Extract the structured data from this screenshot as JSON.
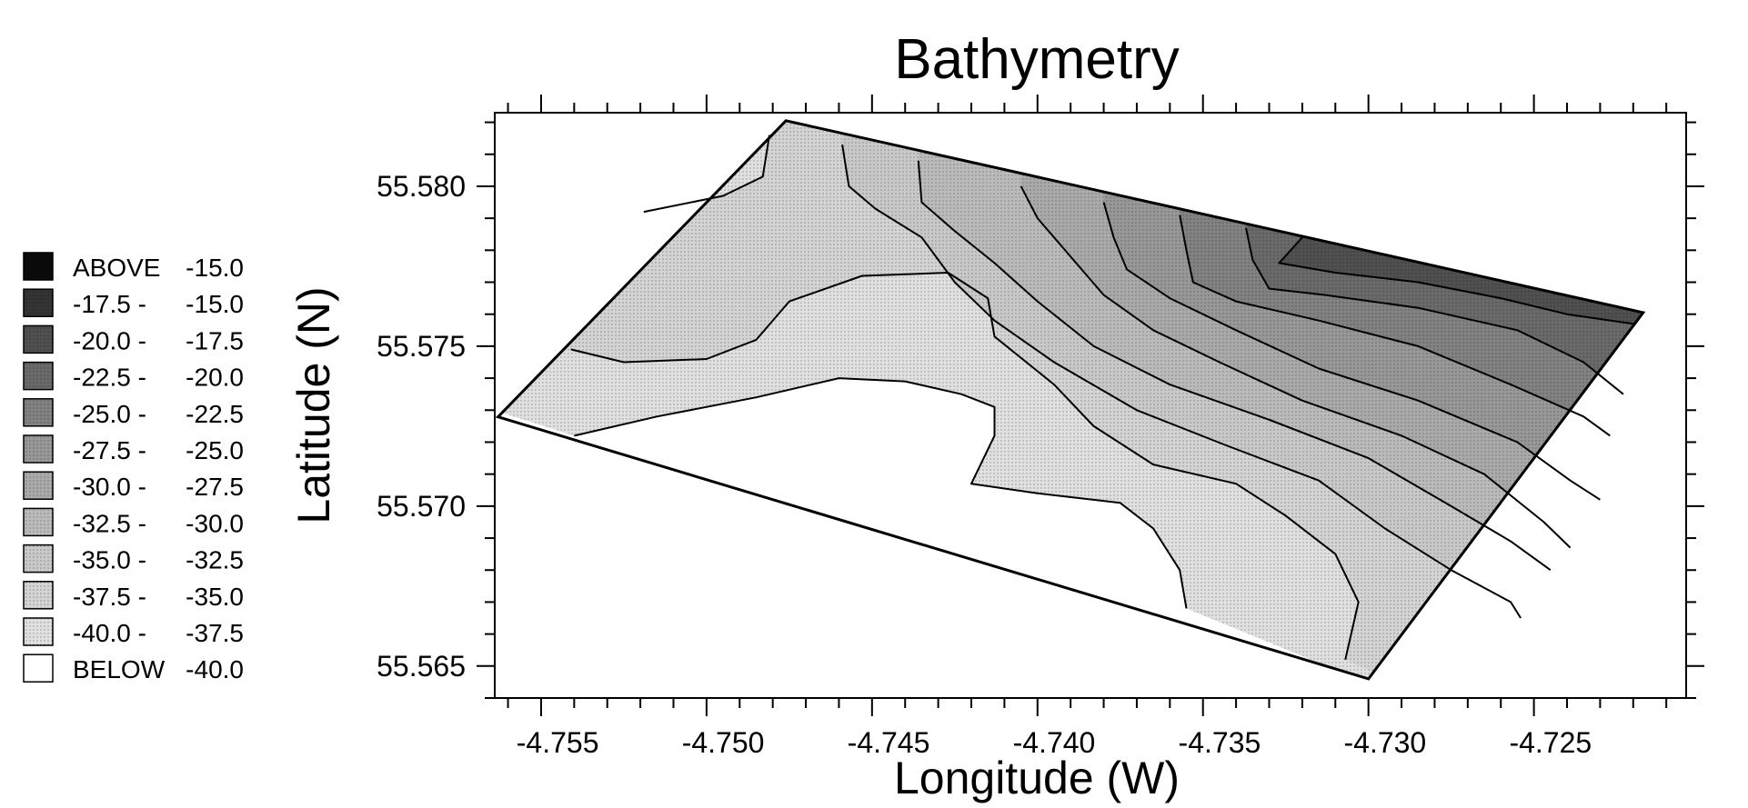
{
  "chart_data": {
    "type": "contour",
    "title": "Bathymetry",
    "xlabel": "Longitude (W)",
    "ylabel": "Latitude (N)",
    "xlim": [
      -4.7569,
      -4.7209
    ],
    "ylim": [
      55.564,
      55.5823
    ],
    "xticks": [
      -4.755,
      -4.75,
      -4.745,
      -4.74,
      -4.735,
      -4.73,
      -4.725
    ],
    "xtick_labels": [
      "-4.755",
      "-4.750",
      "-4.745",
      "-4.740",
      "-4.735",
      "-4.730",
      "-4.725"
    ],
    "yticks": [
      55.565,
      55.57,
      55.575,
      55.58
    ],
    "ytick_labels": [
      "55.565",
      "55.570",
      "55.575",
      "55.580"
    ],
    "grid": false,
    "legend_position": "left",
    "legend": [
      {
        "low": "ABOVE",
        "high": "-15.0",
        "color": "#0a0a0a"
      },
      {
        "low": "-17.5 -",
        "high": "-15.0",
        "color": "#343434"
      },
      {
        "low": "-20.0 -",
        "high": "-17.5",
        "color": "#505050"
      },
      {
        "low": "-22.5 -",
        "high": "-20.0",
        "color": "#6a6a6a"
      },
      {
        "low": "-25.0 -",
        "high": "-22.5",
        "color": "#828282"
      },
      {
        "low": "-27.5 -",
        "high": "-25.0",
        "color": "#989898"
      },
      {
        "low": "-30.0 -",
        "high": "-27.5",
        "color": "#aaaaaa"
      },
      {
        "low": "-32.5 -",
        "high": "-30.0",
        "color": "#bbbbbb"
      },
      {
        "low": "-35.0 -",
        "high": "-32.5",
        "color": "#c9c9c9"
      },
      {
        "low": "-37.5 -",
        "high": "-35.0",
        "color": "#d4d4d4"
      },
      {
        "low": "-40.0 -",
        "high": "-37.5",
        "color": "#e0e0e0"
      },
      {
        "low": "BELOW",
        "high": "-40.0",
        "color": "#ffffff"
      }
    ],
    "survey_area": [
      [
        -4.7481,
        55.58205
      ],
      [
        -4.7222,
        55.57605
      ],
      [
        -4.7305,
        55.5646
      ],
      [
        -4.7568,
        55.57279
      ]
    ],
    "contours": [
      {
        "level": -40.0,
        "points": [
          [
            -4.7545,
            55.5722
          ],
          [
            -4.752,
            55.5728
          ],
          [
            -4.749,
            55.5734
          ],
          [
            -4.7465,
            55.574
          ],
          [
            -4.7445,
            55.5739
          ],
          [
            -4.7428,
            55.5735
          ],
          [
            -4.7418,
            55.5731
          ],
          [
            -4.7418,
            55.5722
          ],
          [
            -4.7425,
            55.5707
          ],
          [
            -4.7405,
            55.5704
          ],
          [
            -4.738,
            55.5701
          ],
          [
            -4.737,
            55.5693
          ],
          [
            -4.7362,
            55.568
          ],
          [
            -4.736,
            55.5668
          ]
        ]
      },
      {
        "level": -37.5,
        "points": [
          [
            -4.7546,
            55.5749
          ],
          [
            -4.753,
            55.5745
          ],
          [
            -4.7505,
            55.5746
          ],
          [
            -4.749,
            55.5752
          ],
          [
            -4.748,
            55.5764
          ],
          [
            -4.7458,
            55.5772
          ],
          [
            -4.7432,
            55.5773
          ],
          [
            -4.742,
            55.5765
          ],
          [
            -4.7418,
            55.5753
          ],
          [
            -4.74,
            55.5738
          ],
          [
            -4.7388,
            55.5725
          ],
          [
            -4.737,
            55.5713
          ],
          [
            -4.7345,
            55.5707
          ],
          [
            -4.733,
            55.5697
          ],
          [
            -4.7315,
            55.5685
          ],
          [
            -4.7308,
            55.567
          ],
          [
            -4.7312,
            55.5652
          ]
        ]
      },
      {
        "level": -35.0,
        "points": [
          [
            -4.7524,
            55.5792
          ],
          [
            -4.75,
            55.5797
          ],
          [
            -4.7488,
            55.5803
          ],
          [
            -4.7486,
            55.5816
          ]
        ]
      },
      {
        "level": -32.5,
        "points": [
          [
            -4.7464,
            55.5813
          ],
          [
            -4.7462,
            55.58
          ],
          [
            -4.7454,
            55.5793
          ],
          [
            -4.744,
            55.5784
          ],
          [
            -4.743,
            55.577
          ],
          [
            -4.7418,
            55.5758
          ],
          [
            -4.74,
            55.5745
          ],
          [
            -4.7375,
            55.573
          ],
          [
            -4.7348,
            55.5719
          ],
          [
            -4.732,
            55.5708
          ],
          [
            -4.73,
            55.5693
          ],
          [
            -4.728,
            55.568
          ],
          [
            -4.7262,
            55.567
          ],
          [
            -4.7259,
            55.5665
          ]
        ]
      },
      {
        "level": -30.0,
        "points": [
          [
            -4.7441,
            55.5808
          ],
          [
            -4.744,
            55.5795
          ],
          [
            -4.743,
            55.5786
          ],
          [
            -4.7418,
            55.5776
          ],
          [
            -4.7405,
            55.5764
          ],
          [
            -4.7388,
            55.575
          ],
          [
            -4.7365,
            55.5738
          ],
          [
            -4.7335,
            55.5727
          ],
          [
            -4.7305,
            55.5715
          ],
          [
            -4.728,
            55.57
          ],
          [
            -4.7262,
            55.5689
          ],
          [
            -4.725,
            55.568
          ]
        ]
      },
      {
        "level": -27.5,
        "points": [
          [
            -4.741,
            55.58
          ],
          [
            -4.7405,
            55.579
          ],
          [
            -4.7395,
            55.5778
          ],
          [
            -4.7385,
            55.5766
          ],
          [
            -4.737,
            55.5755
          ],
          [
            -4.735,
            55.5745
          ],
          [
            -4.7325,
            55.5733
          ],
          [
            -4.7295,
            55.5722
          ],
          [
            -4.727,
            55.571
          ],
          [
            -4.7252,
            55.5695
          ],
          [
            -4.7244,
            55.5687
          ]
        ]
      },
      {
        "level": -25.0,
        "points": [
          [
            -4.7385,
            55.5795
          ],
          [
            -4.7382,
            55.5784
          ],
          [
            -4.7378,
            55.5774
          ],
          [
            -4.7365,
            55.5765
          ],
          [
            -4.7345,
            55.5755
          ],
          [
            -4.732,
            55.5743
          ],
          [
            -4.729,
            55.5733
          ],
          [
            -4.726,
            55.572
          ],
          [
            -4.7244,
            55.5708
          ],
          [
            -4.7235,
            55.5702
          ]
        ]
      },
      {
        "level": -22.5,
        "points": [
          [
            -4.7362,
            55.5791
          ],
          [
            -4.736,
            55.578
          ],
          [
            -4.7358,
            55.577
          ],
          [
            -4.7345,
            55.5764
          ],
          [
            -4.732,
            55.5758
          ],
          [
            -4.729,
            55.575
          ],
          [
            -4.7262,
            55.5738
          ],
          [
            -4.724,
            55.5728
          ],
          [
            -4.7232,
            55.5722
          ]
        ]
      },
      {
        "level": -20.0,
        "points": [
          [
            -4.7342,
            55.5787
          ],
          [
            -4.734,
            55.5777
          ],
          [
            -4.7335,
            55.5768
          ],
          [
            -4.7318,
            55.5766
          ],
          [
            -4.729,
            55.5762
          ],
          [
            -4.726,
            55.5755
          ],
          [
            -4.724,
            55.5745
          ],
          [
            -4.7228,
            55.5735
          ]
        ]
      },
      {
        "level": -17.5,
        "points": [
          [
            -4.7325,
            55.5784
          ],
          [
            -4.7332,
            55.5776
          ],
          [
            -4.7315,
            55.5773
          ],
          [
            -4.729,
            55.577
          ],
          [
            -4.7265,
            55.5765
          ],
          [
            -4.7245,
            55.576
          ],
          [
            -4.7225,
            55.5757
          ]
        ]
      }
    ]
  }
}
